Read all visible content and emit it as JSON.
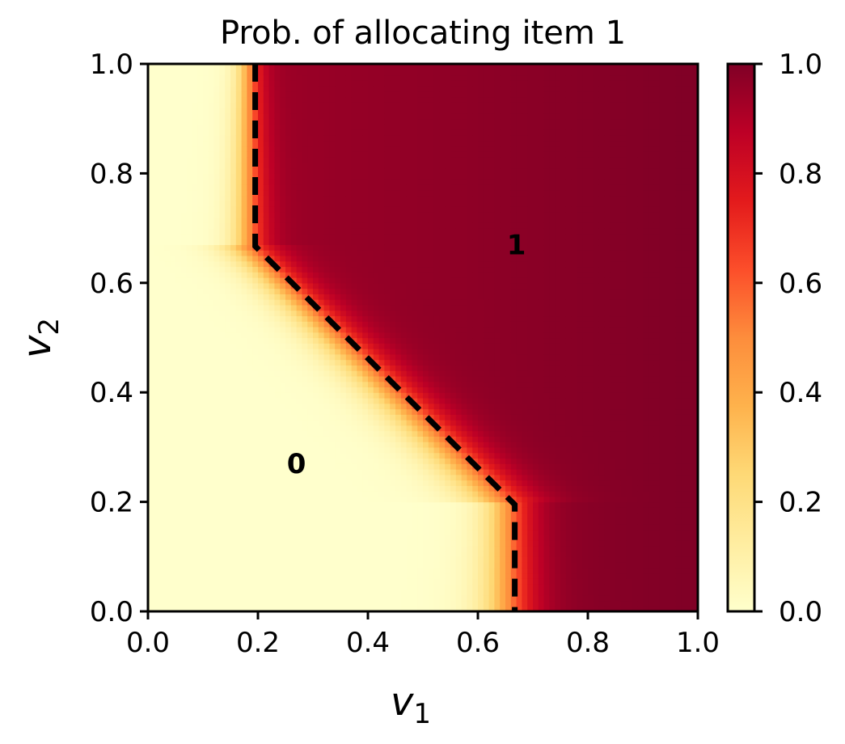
{
  "chart_data": {
    "type": "heatmap",
    "title": "Prob. of allocating item 1",
    "xlabel": "v",
    "xlabel_sub": "1",
    "ylabel": "v",
    "ylabel_sub": "2",
    "xlim": [
      0.0,
      1.0
    ],
    "ylim": [
      0.0,
      1.0
    ],
    "x_ticks": [
      0.0,
      0.2,
      0.4,
      0.6,
      0.8,
      1.0
    ],
    "x_tick_labels": [
      "0.0",
      "0.2",
      "0.4",
      "0.6",
      "0.8",
      "1.0"
    ],
    "y_ticks": [
      0.0,
      0.2,
      0.4,
      0.6,
      0.8,
      1.0
    ],
    "y_tick_labels": [
      "0.0",
      "0.2",
      "0.4",
      "0.6",
      "0.8",
      "1.0"
    ],
    "colorbar": {
      "range": [
        0.0,
        1.0
      ],
      "ticks": [
        0.0,
        0.2,
        0.4,
        0.6,
        0.8,
        1.0
      ],
      "tick_labels": [
        "0.0",
        "0.2",
        "0.4",
        "0.6",
        "0.8",
        "1.0"
      ],
      "colormap": "YlOrRd",
      "colormap_stops": [
        "#ffffcc",
        "#ffeda0",
        "#fed976",
        "#feb24c",
        "#fd8d3c",
        "#fc4e2a",
        "#e31a1c",
        "#bd0026",
        "#800026"
      ]
    },
    "decision_boundary": {
      "style": "dashed",
      "color": "#000000",
      "points": [
        [
          0.195,
          1.0
        ],
        [
          0.195,
          0.667
        ],
        [
          0.667,
          0.195
        ],
        [
          0.667,
          0.0
        ]
      ]
    },
    "annotations": [
      {
        "text": "0",
        "x": 0.27,
        "y": 0.27
      },
      {
        "text": "1",
        "x": 0.67,
        "y": 0.67
      }
    ],
    "grid": false
  }
}
